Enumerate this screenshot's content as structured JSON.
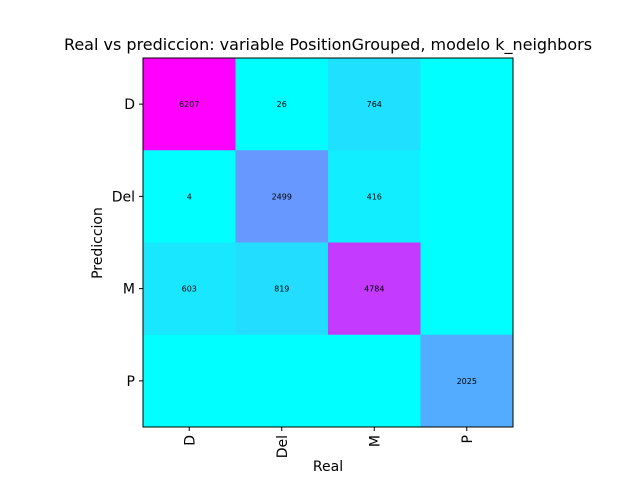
{
  "chart_data": {
    "type": "heatmap",
    "title": "Real vs prediccion: variable PositionGrouped, modelo k_neighbors",
    "xlabel": "Real",
    "ylabel": "Prediccion",
    "x_categories": [
      "D",
      "Del",
      "M",
      "P"
    ],
    "y_categories": [
      "D",
      "Del",
      "M",
      "P"
    ],
    "values": [
      [
        6207,
        26,
        764,
        0
      ],
      [
        4,
        2499,
        416,
        0
      ],
      [
        603,
        819,
        4784,
        0
      ],
      [
        0,
        0,
        0,
        2025
      ]
    ],
    "cell_labels": [
      [
        "6207",
        "26",
        "764",
        ""
      ],
      [
        "4",
        "2499",
        "416",
        ""
      ],
      [
        "603",
        "819",
        "4784",
        ""
      ],
      [
        "",
        "",
        "",
        "2025"
      ]
    ],
    "colormap": "cool",
    "colormap_endpoints": [
      "#00ffff",
      "#ff00ff"
    ],
    "grid": false,
    "legend": "none"
  }
}
